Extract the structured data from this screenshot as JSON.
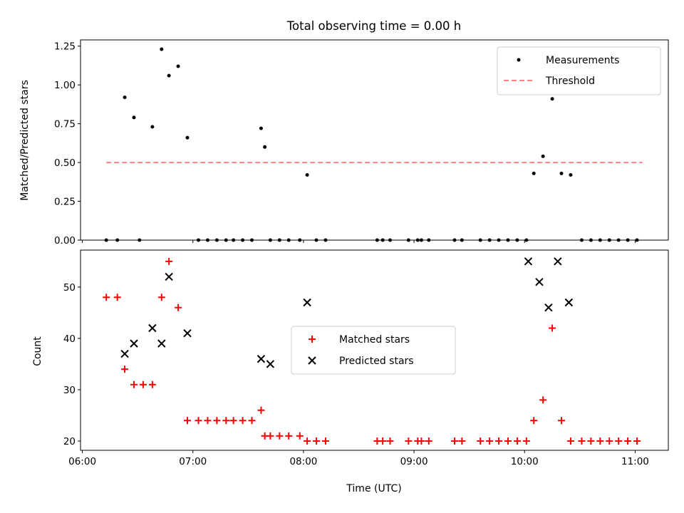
{
  "chart_data": [
    {
      "type": "scatter",
      "title": "Total observing time = 0.00 h",
      "xlabel": "",
      "ylabel": "Matched/Predicted stars",
      "ylim": [
        0,
        1.29
      ],
      "yticks": [
        "0.00",
        "0.25",
        "0.50",
        "0.75",
        "1.00",
        "1.25"
      ],
      "xlim": [
        "05:59",
        "11:18"
      ],
      "x_axis_type": "time",
      "grid": false,
      "legend_position": "top-right",
      "series": [
        {
          "name": "Measurements",
          "marker": "dot",
          "color": "#000000",
          "x": [
            "06:13",
            "06:19",
            "06:23",
            "06:28",
            "06:31",
            "06:38",
            "06:43",
            "06:47",
            "06:52",
            "06:57",
            "07:03",
            "07:08",
            "07:13",
            "07:18",
            "07:22",
            "07:27",
            "07:32",
            "07:37",
            "07:39",
            "07:42",
            "07:47",
            "07:52",
            "07:58",
            "08:02",
            "08:07",
            "08:12",
            "08:40",
            "08:43",
            "08:47",
            "08:57",
            "09:02",
            "09:04",
            "09:08",
            "09:22",
            "09:26",
            "09:36",
            "09:41",
            "09:46",
            "09:51",
            "09:56",
            "10:01",
            "10:05",
            "10:10",
            "10:15",
            "10:20",
            "10:25",
            "10:31",
            "10:36",
            "10:41",
            "10:46",
            "10:51",
            "10:56",
            "11:01"
          ],
          "values": [
            0,
            0,
            0.92,
            0.79,
            0,
            0.73,
            1.23,
            1.06,
            1.12,
            0.66,
            0,
            0,
            0,
            0,
            0,
            0,
            0,
            0.72,
            0.6,
            0,
            0,
            0,
            0,
            0.42,
            0,
            0,
            0,
            0,
            0,
            0,
            0,
            0,
            0,
            0,
            0,
            0,
            0,
            0,
            0,
            0,
            0,
            0.43,
            0.54,
            0.91,
            0.43,
            0.42,
            0,
            0,
            0,
            0,
            0,
            0,
            0
          ]
        },
        {
          "name": "Threshold",
          "style": "dashed",
          "color": "#ff8080",
          "x": [
            "06:13",
            "11:04"
          ],
          "values": [
            0.5,
            0.5
          ]
        }
      ]
    },
    {
      "type": "scatter",
      "title": "",
      "xlabel": "Time (UTC)",
      "ylabel": "Count",
      "ylim": [
        18.2,
        57.2
      ],
      "yticks": [
        "20",
        "30",
        "40",
        "50"
      ],
      "xlim": [
        "05:59",
        "11:18"
      ],
      "xticks": [
        "06:00",
        "07:00",
        "08:00",
        "09:00",
        "10:00",
        "11:00"
      ],
      "x_axis_type": "time",
      "grid": false,
      "legend_position": "center",
      "series": [
        {
          "name": "Matched stars",
          "marker": "plus",
          "color": "#ff0000",
          "x": [
            "06:13",
            "06:19",
            "06:23",
            "06:28",
            "06:33",
            "06:38",
            "06:43",
            "06:47",
            "06:52",
            "06:57",
            "07:03",
            "07:08",
            "07:13",
            "07:18",
            "07:22",
            "07:27",
            "07:32",
            "07:37",
            "07:39",
            "07:42",
            "07:47",
            "07:52",
            "07:58",
            "08:02",
            "08:07",
            "08:12",
            "08:40",
            "08:43",
            "08:47",
            "08:57",
            "09:02",
            "09:04",
            "09:08",
            "09:22",
            "09:26",
            "09:36",
            "09:41",
            "09:46",
            "09:51",
            "09:56",
            "10:01",
            "10:05",
            "10:10",
            "10:15",
            "10:20",
            "10:25",
            "10:31",
            "10:36",
            "10:41",
            "10:46",
            "10:51",
            "10:56",
            "11:01"
          ],
          "values": [
            48,
            48,
            34,
            31,
            31,
            31,
            48,
            55,
            46,
            24,
            24,
            24,
            24,
            24,
            24,
            24,
            24,
            26,
            21,
            21,
            21,
            21,
            21,
            20,
            20,
            20,
            20,
            20,
            20,
            20,
            20,
            20,
            20,
            20,
            20,
            20,
            20,
            20,
            20,
            20,
            20,
            24,
            28,
            42,
            24,
            20,
            20,
            20,
            20,
            20,
            20,
            20,
            20
          ]
        },
        {
          "name": "Predicted stars",
          "marker": "x",
          "color": "#000000",
          "x": [
            "06:23",
            "06:28",
            "06:38",
            "06:43",
            "06:47",
            "06:57",
            "07:37",
            "07:42",
            "08:02",
            "10:02",
            "10:08",
            "10:13",
            "10:18",
            "10:24"
          ],
          "values": [
            37,
            39,
            42,
            39,
            52,
            41,
            36,
            35,
            47,
            55,
            51,
            46,
            55,
            47
          ]
        }
      ]
    }
  ]
}
